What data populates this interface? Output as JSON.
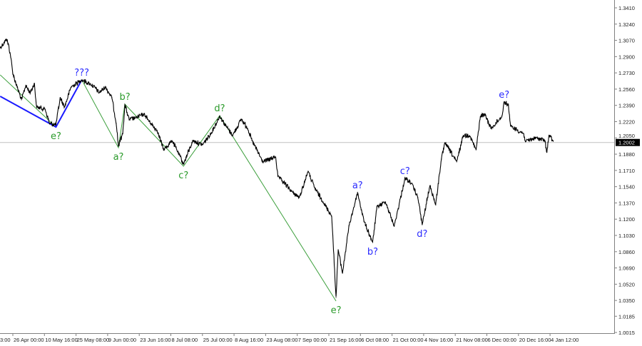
{
  "chart_data": {
    "type": "line",
    "title": "",
    "xlabel": "",
    "ylabel": "",
    "ylim": [
      1.0008,
      1.3492
    ],
    "grid": false,
    "y_ticks": [
      "1.3410",
      "1.3240",
      "1.3070",
      "1.2900",
      "1.2730",
      "1.2560",
      "1.2390",
      "1.2220",
      "1.2050",
      "1.1880",
      "1.1710",
      "1.1540",
      "1.1370",
      "1.1200",
      "1.1030",
      "1.0860",
      "1.0690",
      "1.0520",
      "1.0350",
      "1.0185",
      "1.0015"
    ],
    "x_ticks": [
      {
        "label": "3:00",
        "t": "2022-04-11T03:00"
      },
      {
        "label": "26 Apr 00:00",
        "t": "2022-04-26T00:00"
      },
      {
        "label": "10 May 16:00",
        "t": "2022-05-10T16:00"
      },
      {
        "label": "25 May 08:00",
        "t": "2022-05-25T08:00"
      },
      {
        "label": "9 Jun 00:00",
        "t": "2022-06-09T00:00"
      },
      {
        "label": "23 Jun 16:00",
        "t": "2022-06-23T16:00"
      },
      {
        "label": "8 Jul 08:00",
        "t": "2022-07-08T08:00"
      },
      {
        "label": "25 Jul 00:00",
        "t": "2022-07-25T00:00"
      },
      {
        "label": "8 Aug 16:00",
        "t": "2022-08-08T16:00"
      },
      {
        "label": "23 Aug 08:00",
        "t": "2022-08-23T08:00"
      },
      {
        "label": "7 Sep 00:00",
        "t": "2022-09-07T00:00"
      },
      {
        "label": "21 Sep 16:00",
        "t": "2022-09-21T16:00"
      },
      {
        "label": "6 Oct 08:00",
        "t": "2022-10-06T08:00"
      },
      {
        "label": "21 Oct 00:00",
        "t": "2022-10-21T00:00"
      },
      {
        "label": "4 Nov 16:00",
        "t": "2022-11-04T16:00"
      },
      {
        "label": "21 Nov 08:00",
        "t": "2022-11-21T08:00"
      },
      {
        "label": "6 Dec 00:00",
        "t": "2022-12-06T00:00"
      },
      {
        "label": "20 Dec 16:00",
        "t": "2022-12-20T16:00"
      },
      {
        "label": "4 Jan 12:00",
        "t": "2023-01-04T12:00"
      }
    ],
    "current_price": "1.2002",
    "colors": {
      "price": "#000000",
      "green_wave": "#3c9f3c",
      "blue_wave": "#1a1aff",
      "green_label": "#2a9a2a",
      "blue_label": "#2a2aff",
      "current_line": "#c0c0c0",
      "badge": "#000000"
    },
    "price_path": [
      [
        "2022-04-20",
        1.2992
      ],
      [
        "2022-04-23",
        1.3082
      ],
      [
        "2022-04-24",
        1.3022
      ],
      [
        "2022-04-25",
        1.2895
      ],
      [
        "2022-04-26",
        1.2724
      ],
      [
        "2022-04-28",
        1.2582
      ],
      [
        "2022-04-30",
        1.2448
      ],
      [
        "2022-05-02",
        1.2597
      ],
      [
        "2022-05-04",
        1.2522
      ],
      [
        "2022-05-06",
        1.2619
      ],
      [
        "2022-05-07",
        1.2373
      ],
      [
        "2022-05-11",
        1.2351
      ],
      [
        "2022-05-13",
        1.2201
      ],
      [
        "2022-05-16",
        1.2187
      ],
      [
        "2022-05-18",
        1.247
      ],
      [
        "2022-05-20",
        1.2373
      ],
      [
        "2022-05-23",
        1.2582
      ],
      [
        "2022-05-28",
        1.2657
      ],
      [
        "2022-06-01",
        1.2612
      ],
      [
        "2022-06-03",
        1.2582
      ],
      [
        "2022-06-05",
        1.2522
      ],
      [
        "2022-06-08",
        1.2582
      ],
      [
        "2022-06-11",
        1.247
      ],
      [
        "2022-06-13",
        1.2201
      ],
      [
        "2022-06-14",
        1.1963
      ],
      [
        "2022-06-16",
        1.2097
      ],
      [
        "2022-06-17",
        1.2395
      ],
      [
        "2022-06-19",
        1.2239
      ],
      [
        "2022-06-22",
        1.2261
      ],
      [
        "2022-06-26",
        1.2298
      ],
      [
        "2022-06-29",
        1.2201
      ],
      [
        "2022-07-02",
        1.2127
      ],
      [
        "2022-07-05",
        1.1925
      ],
      [
        "2022-07-09",
        1.2022
      ],
      [
        "2022-07-12",
        1.1903
      ],
      [
        "2022-07-15",
        1.1776
      ],
      [
        "2022-07-20",
        1.2022
      ],
      [
        "2022-07-25",
        1.1978
      ],
      [
        "2022-07-29",
        1.2097
      ],
      [
        "2022-08-02",
        1.2276
      ],
      [
        "2022-08-05",
        1.2172
      ],
      [
        "2022-08-08",
        1.2075
      ],
      [
        "2022-08-12",
        1.2246
      ],
      [
        "2022-08-15",
        1.2149
      ],
      [
        "2022-08-17",
        1.2022
      ],
      [
        "2022-08-22",
        1.1799
      ],
      [
        "2022-08-28",
        1.1851
      ],
      [
        "2022-08-29",
        1.1649
      ],
      [
        "2022-09-05",
        1.1478
      ],
      [
        "2022-09-08",
        1.1426
      ],
      [
        "2022-09-12",
        1.1702
      ],
      [
        "2022-09-15",
        1.153
      ],
      [
        "2022-09-19",
        1.1381
      ],
      [
        "2022-09-23",
        1.1232
      ],
      [
        "2022-09-25",
        1.0381
      ],
      [
        "2022-09-26",
        1.0881
      ],
      [
        "2022-09-28",
        1.0635
      ],
      [
        "2022-10-01",
        1.1127
      ],
      [
        "2022-10-05",
        1.1478
      ],
      [
        "2022-10-08",
        1.1179
      ],
      [
        "2022-10-12",
        1.0956
      ],
      [
        "2022-10-14",
        1.1329
      ],
      [
        "2022-10-18",
        1.1381
      ],
      [
        "2022-10-22",
        1.1127
      ],
      [
        "2022-10-27",
        1.1627
      ],
      [
        "2022-10-30",
        1.1575
      ],
      [
        "2022-11-02",
        1.1426
      ],
      [
        "2022-11-04",
        1.1142
      ],
      [
        "2022-11-08",
        1.1552
      ],
      [
        "2022-11-11",
        1.1351
      ],
      [
        "2022-11-14",
        1.1828
      ],
      [
        "2022-11-16",
        1.2
      ],
      [
        "2022-11-22",
        1.1799
      ],
      [
        "2022-11-25",
        1.2075
      ],
      [
        "2022-11-28",
        1.2075
      ],
      [
        "2022-12-01",
        1.1925
      ],
      [
        "2022-12-03",
        1.2276
      ],
      [
        "2022-12-05",
        1.2298
      ],
      [
        "2022-12-08",
        1.2149
      ],
      [
        "2022-12-13",
        1.2276
      ],
      [
        "2022-12-14",
        1.2425
      ],
      [
        "2022-12-16",
        1.2395
      ],
      [
        "2022-12-17",
        1.2172
      ],
      [
        "2022-12-23",
        1.2097
      ],
      [
        "2022-12-24",
        1.2015
      ],
      [
        "2022-12-29",
        1.2052
      ],
      [
        "2023-01-02",
        1.2022
      ],
      [
        "2023-01-03",
        1.1903
      ],
      [
        "2023-01-04",
        1.2075
      ],
      [
        "2023-01-06",
        1.2015
      ]
    ],
    "wave_lines": [
      {
        "color": "green_wave",
        "points": [
          [
            "2022-04-20",
            1.2709
          ],
          [
            "2022-05-16",
            1.2164
          ]
        ]
      },
      {
        "color": "blue_wave",
        "thick": true,
        "points": [
          [
            "2022-04-20",
            1.2485
          ],
          [
            "2022-05-16",
            1.2164
          ],
          [
            "2022-05-28",
            1.2657
          ]
        ]
      },
      {
        "color": "green_wave",
        "points": [
          [
            "2022-05-28",
            1.2657
          ],
          [
            "2022-06-14",
            1.1948
          ],
          [
            "2022-06-17",
            1.2403
          ],
          [
            "2022-07-15",
            1.1754
          ],
          [
            "2022-08-02",
            1.2283
          ],
          [
            "2022-09-25",
            1.0344
          ]
        ]
      }
    ],
    "wave_labels": [
      {
        "text": "e?",
        "color": "green_label",
        "t": "2022-05-16",
        "price": 1.2164,
        "position": "below"
      },
      {
        "text": "???",
        "color": "blue_label",
        "t": "2022-05-28",
        "price": 1.2657,
        "position": "above"
      },
      {
        "text": "a?",
        "color": "green_label",
        "t": "2022-06-14",
        "price": 1.1948,
        "position": "below"
      },
      {
        "text": "b?",
        "color": "green_label",
        "t": "2022-06-17",
        "price": 1.2403,
        "position": "above"
      },
      {
        "text": "c?",
        "color": "green_label",
        "t": "2022-07-15",
        "price": 1.1754,
        "position": "below"
      },
      {
        "text": "d?",
        "color": "green_label",
        "t": "2022-08-02",
        "price": 1.2283,
        "position": "above"
      },
      {
        "text": "e?",
        "color": "green_label",
        "t": "2022-09-25",
        "price": 1.0344,
        "position": "below"
      },
      {
        "text": "a?",
        "color": "blue_label",
        "t": "2022-10-05",
        "price": 1.1478,
        "position": "above"
      },
      {
        "text": "b?",
        "color": "blue_label",
        "t": "2022-10-12",
        "price": 1.0956,
        "position": "below"
      },
      {
        "text": "c?",
        "color": "blue_label",
        "t": "2022-10-27",
        "price": 1.1627,
        "position": "above"
      },
      {
        "text": "d?",
        "color": "blue_label",
        "t": "2022-11-04",
        "price": 1.1142,
        "position": "below"
      },
      {
        "text": "e?",
        "color": "blue_label",
        "t": "2022-12-14",
        "price": 1.2425,
        "position": "above"
      }
    ]
  }
}
